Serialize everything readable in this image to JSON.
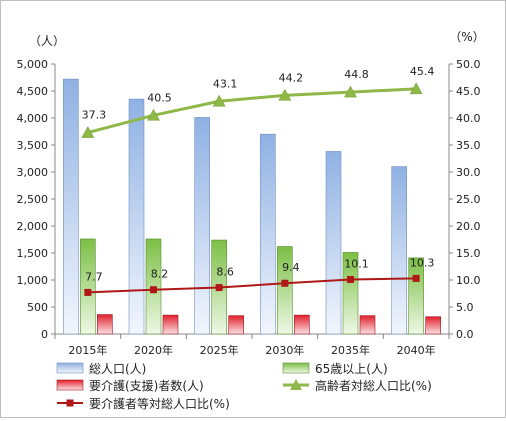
{
  "chart_data": {
    "type": "bar",
    "categories": [
      "2015年",
      "2020年",
      "2025年",
      "2030年",
      "2035年",
      "2040年"
    ],
    "left_axis": {
      "unit_label": "（人）",
      "ylim": [
        0,
        5000
      ],
      "ticks": [
        "0",
        "500",
        "1,000",
        "1,500",
        "2,000",
        "2,500",
        "3,000",
        "3,500",
        "4,000",
        "4,500",
        "5,000"
      ]
    },
    "right_axis": {
      "unit_label": "（%）",
      "ylim": [
        0,
        50
      ],
      "ticks": [
        "0.0",
        "5.0",
        "10.0",
        "15.0",
        "20.0",
        "25.0",
        "30.0",
        "35.0",
        "40.0",
        "45.0",
        "50.0"
      ]
    },
    "series": [
      {
        "name": "総人口(人)",
        "type": "bar",
        "axis": "left",
        "color": "#a9c4ea",
        "values": [
          4720,
          4350,
          4010,
          3700,
          3380,
          3100
        ]
      },
      {
        "name": "65歳以上(人)",
        "type": "bar",
        "axis": "left",
        "color": "#8fc65a",
        "values": [
          1760,
          1760,
          1740,
          1620,
          1510,
          1410
        ]
      },
      {
        "name": "要介護(支援)者数(人)",
        "type": "bar",
        "axis": "left",
        "color": "#e0303a",
        "values": [
          360,
          350,
          340,
          350,
          340,
          320
        ]
      },
      {
        "name": "高齢者対総人口比(%)",
        "type": "line",
        "axis": "right",
        "color": "#8fb848",
        "marker": "triangle",
        "values": [
          37.3,
          40.5,
          43.1,
          44.2,
          44.8,
          45.4
        ],
        "labels": [
          "37.3",
          "40.5",
          "43.1",
          "44.2",
          "44.8",
          "45.4"
        ]
      },
      {
        "name": "要介護者等対総人口比(%)",
        "type": "line",
        "axis": "right",
        "color": "#b01818",
        "marker": "square",
        "values": [
          7.7,
          8.2,
          8.6,
          9.4,
          10.1,
          10.3
        ],
        "labels": [
          "7.7",
          "8.2",
          "8.6",
          "9.4",
          "10.1",
          "10.3"
        ]
      }
    ],
    "grid": false,
    "legend_position": "bottom"
  }
}
